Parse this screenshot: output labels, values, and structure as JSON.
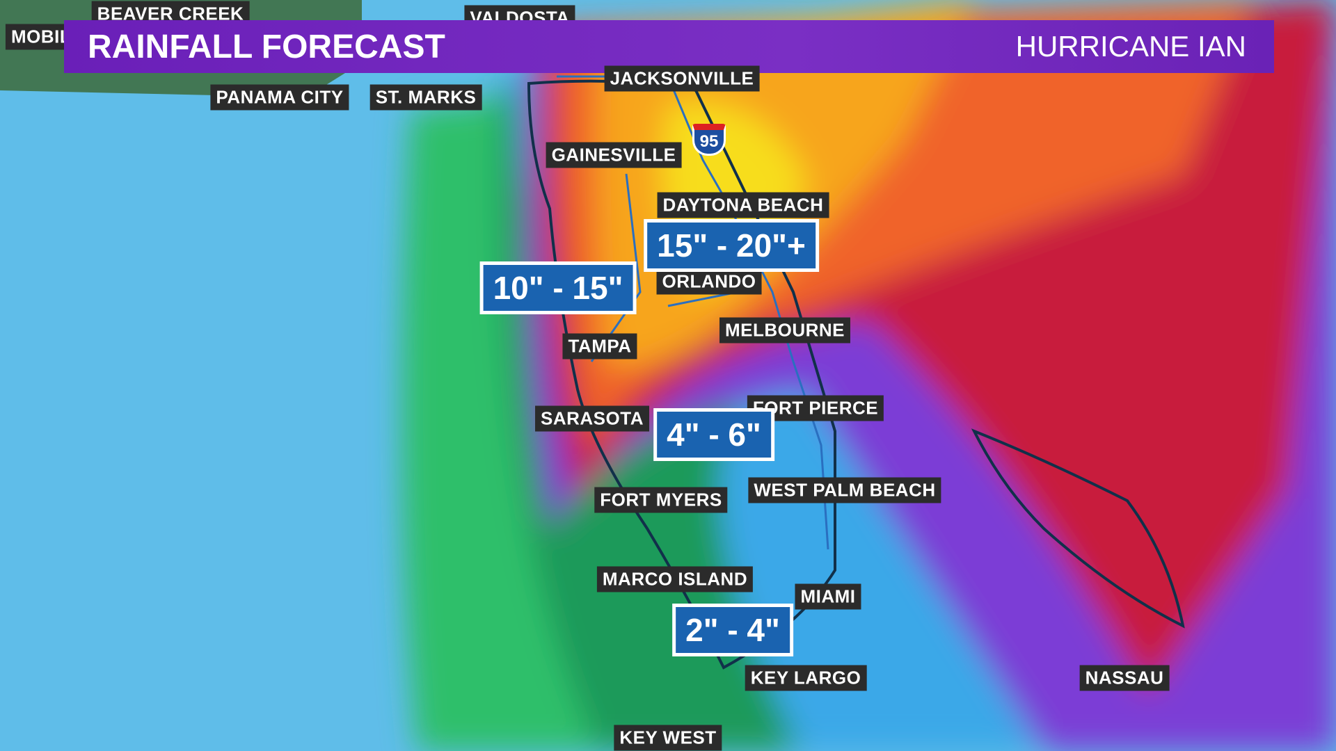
{
  "header": {
    "title": "RAINFALL FORECAST",
    "subtitle": "HURRICANE IAN"
  },
  "cities": [
    "BEAVER CREEK",
    "MOBILE",
    "VALDOSTA",
    "PANAMA CITY",
    "ST. MARKS",
    "JACKSONVILLE",
    "GAINESVILLE",
    "DAYTONA BEACH",
    "ORLANDO",
    "MELBOURNE",
    "TAMPA",
    "SARASOTA",
    "FORT PIERCE",
    "FORT MYERS",
    "WEST PALM BEACH",
    "MARCO ISLAND",
    "MIAMI",
    "KEY LARGO",
    "KEY WEST",
    "NASSAU"
  ],
  "rainfall_ranges": [
    "15\" - 20\"+",
    "10\" - 15\"",
    "4\" - 6\"",
    "2\" - 4\""
  ],
  "highway_shield": "95"
}
